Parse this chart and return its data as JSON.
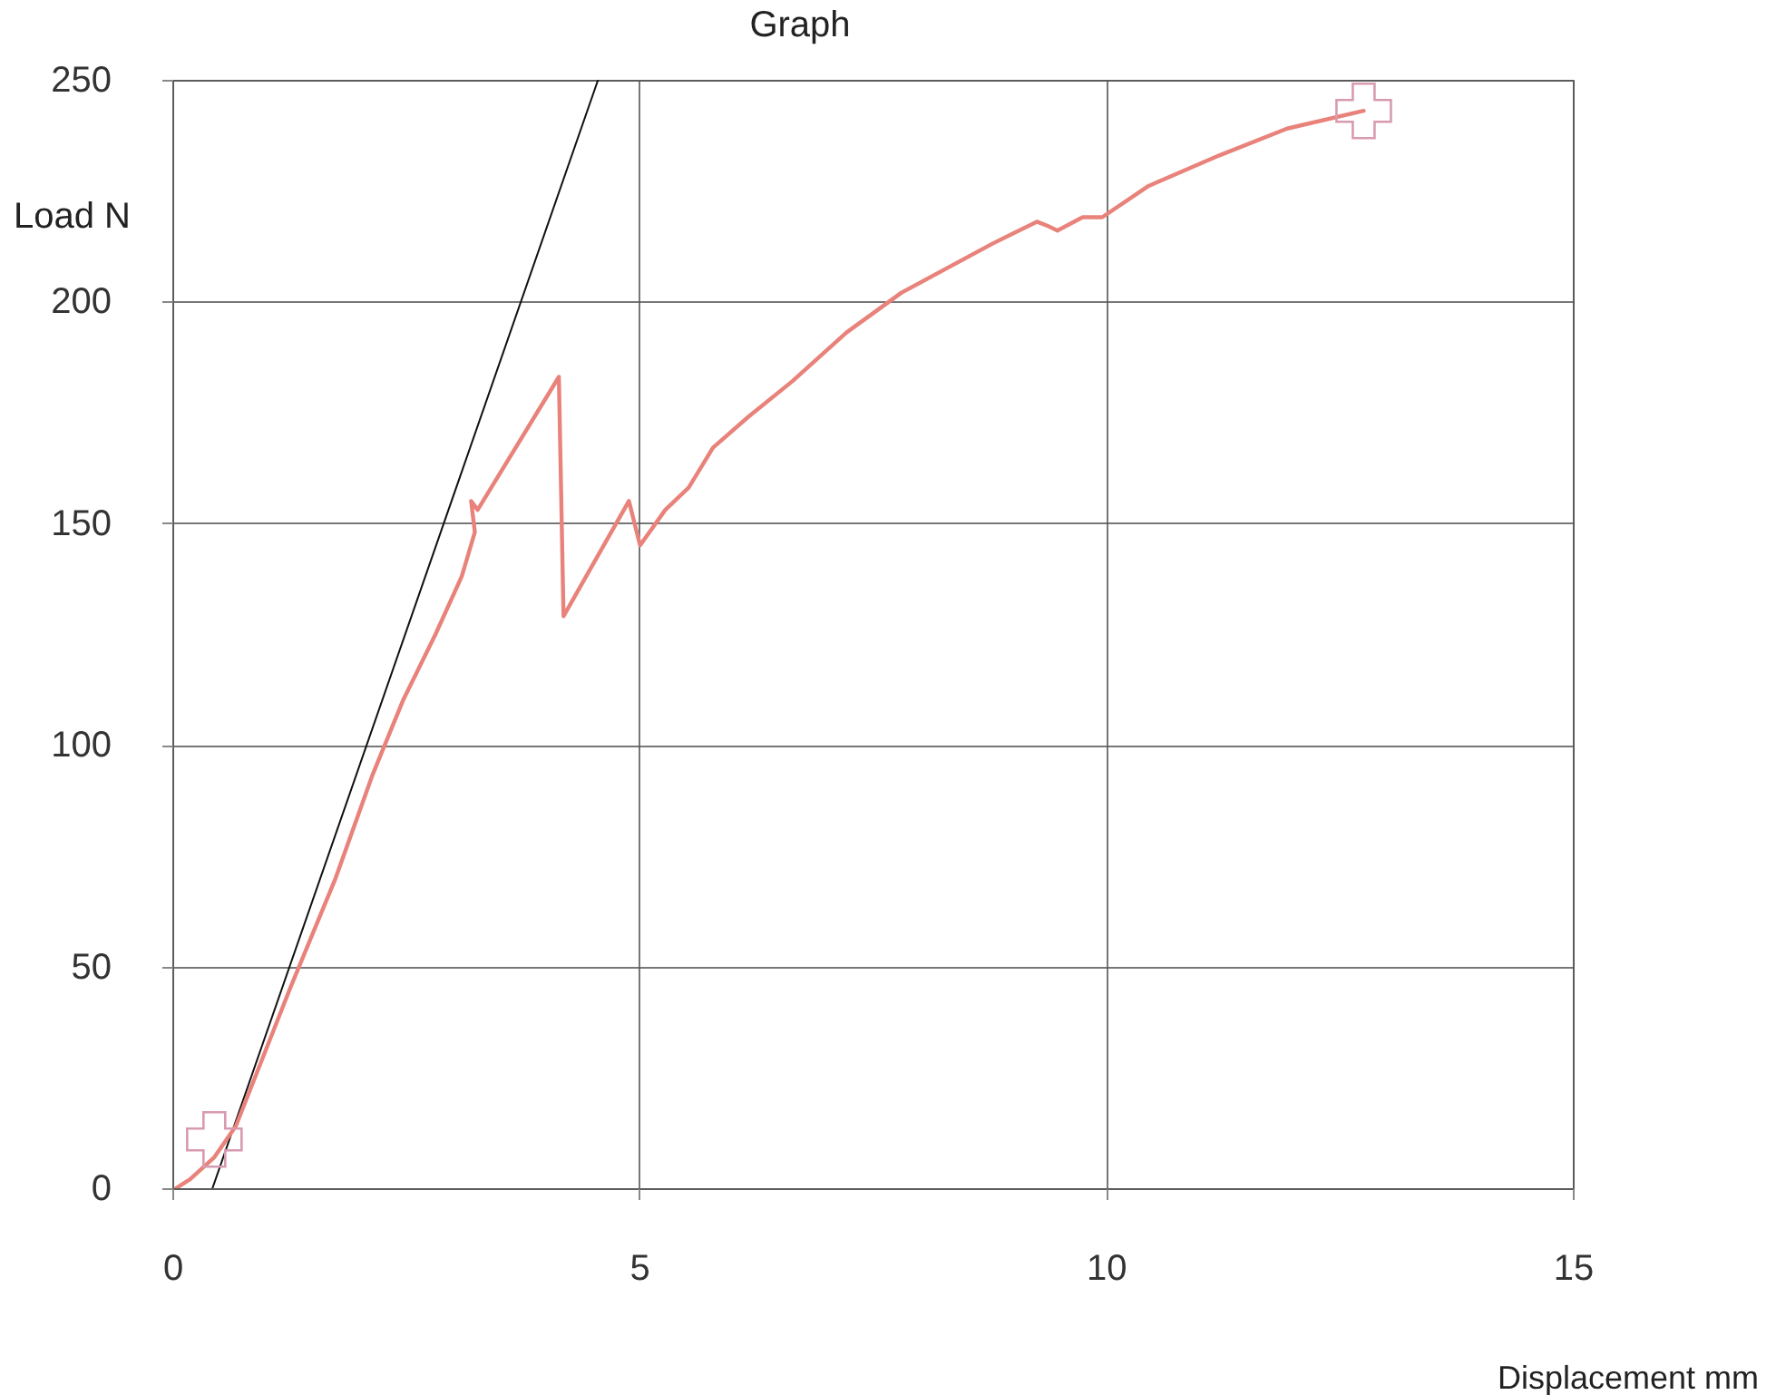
{
  "chart_data": {
    "type": "line",
    "title": "Graph",
    "xlabel": "Displacement  mm",
    "ylabel": "Load N",
    "xlim": [
      0,
      15
    ],
    "xticks": [
      0,
      5,
      10,
      15
    ],
    "ylim": [
      0,
      250
    ],
    "yticks": [
      0,
      50,
      100,
      150,
      200,
      250
    ],
    "grid": true,
    "series": [
      {
        "color": "#111111",
        "x": [
          0.43,
          4.56
        ],
        "values": [
          0,
          250
        ]
      },
      {
        "color": "#e8827a",
        "x": [
          0.04,
          0.19,
          0.45,
          0.68,
          1.26,
          1.75,
          2.14,
          2.47,
          2.82,
          3.1,
          3.24,
          3.2,
          3.27,
          4.14,
          4.19,
          4.89,
          5.01,
          5.28,
          5.53,
          5.79,
          6.17,
          6.64,
          7.22,
          7.81,
          8.78,
          9.26,
          9.38,
          9.48,
          9.75,
          9.96,
          10.45,
          11.22,
          11.94,
          12.76
        ],
        "values": [
          0,
          2,
          7,
          14,
          45,
          70,
          93,
          110,
          125,
          138,
          148,
          155,
          153,
          183,
          129,
          155,
          145,
          153,
          158,
          167,
          174,
          182,
          193,
          202,
          213,
          218,
          217,
          216,
          219,
          219,
          226,
          233,
          239,
          243
        ]
      },
      {
        "type": "scatter",
        "marker": "cross",
        "color": "#d89ab0",
        "x": [
          0.45,
          12.76
        ],
        "values": [
          11,
          243
        ]
      }
    ]
  }
}
